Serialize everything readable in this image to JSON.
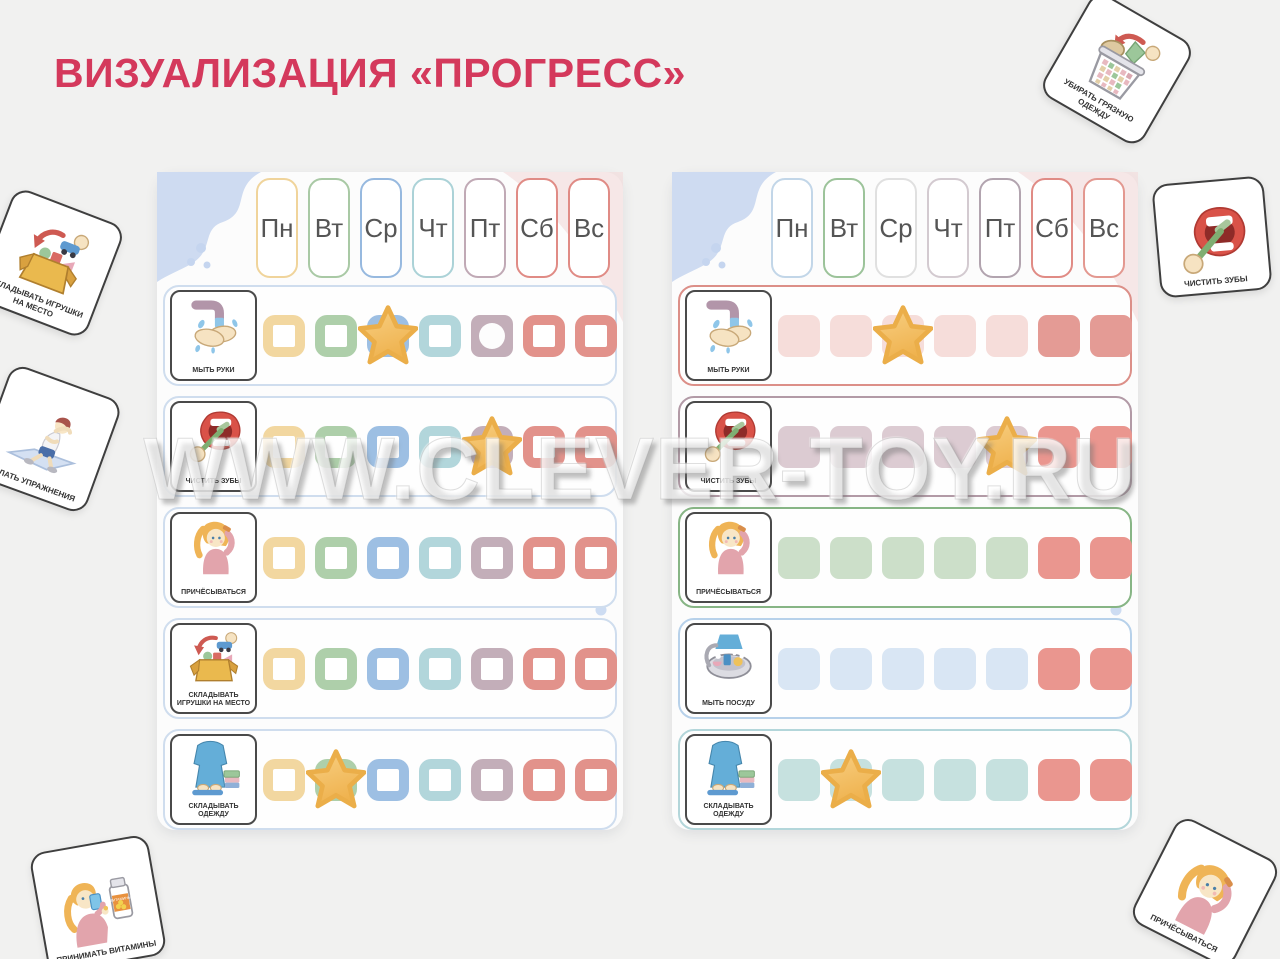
{
  "page": {
    "title": "ВИЗУАЛИЗАЦИЯ «ПРОГРЕСС»",
    "title_color": "#D4395C",
    "background": "#F1F1F0"
  },
  "watermark": "WWW.CLEVER-TOY.RU",
  "vitamins_bottle_label": "ВИТАМИНЫ",
  "palette": {
    "yellow": "#F2D7A0",
    "green": "#AECFAA",
    "blue": "#9DBFE3",
    "teal": "#B2D6DB",
    "mauve": "#C3AEB9",
    "red": "#E2928B",
    "pink": "#F6DDDA",
    "darkpink": "#E49B95",
    "mauvefill": "#DCCBD2",
    "redfill": "#EA968F",
    "greenfill": "#CCDFC9",
    "bluefill": "#D9E6F4",
    "tealfill": "#C6E1DF",
    "star": "#F2BC57"
  },
  "boards": [
    {
      "days": [
        {
          "label": "Пн",
          "color": "#F0D49B"
        },
        {
          "label": "Вт",
          "color": "#A9C9A5"
        },
        {
          "label": "Ср",
          "color": "#97B9DF"
        },
        {
          "label": "Чт",
          "color": "#ABD2D7"
        },
        {
          "label": "Пт",
          "color": "#C0A9B5"
        },
        {
          "label": "Сб",
          "color": "#E08B85"
        },
        {
          "label": "Вс",
          "color": "#E08B85"
        }
      ],
      "rows": [
        {
          "label": "МЫТЬ РУКИ",
          "icon": "#icon-wash-hands",
          "border": "#CFDDEE",
          "cells": [
            "o:yellow",
            "o:green",
            "s:blue",
            "o:teal",
            "c:mauve",
            "o:red",
            "o:red"
          ]
        },
        {
          "label": "ЧИСТИТЬ ЗУБЫ",
          "icon": "#icon-brush-teeth",
          "border": "#CFDDEE",
          "cells": [
            "o:yellow",
            "o:green",
            "o:blue",
            "o:teal",
            "s:mauve",
            "o:red",
            "o:red"
          ]
        },
        {
          "label": "ПРИЧЁСЫВАТЬСЯ",
          "icon": "#icon-comb-hair",
          "border": "#CFDDEE",
          "cells": [
            "o:yellow",
            "o:green",
            "o:blue",
            "o:teal",
            "o:mauve",
            "o:red",
            "o:red"
          ]
        },
        {
          "label": "СКЛАДЫВАТЬ ИГРУШКИ НА МЕСТО",
          "icon": "#icon-put-toys",
          "border": "#CFDDEE",
          "cells": [
            "o:yellow",
            "o:green",
            "o:blue",
            "o:teal",
            "o:mauve",
            "o:red",
            "o:red"
          ]
        },
        {
          "label": "СКЛАДЫВАТЬ ОДЕЖДУ",
          "icon": "#icon-fold-clothes",
          "border": "#CFDDEE",
          "cells": [
            "o:yellow",
            "s:green",
            "o:blue",
            "o:teal",
            "o:mauve",
            "o:red",
            "o:red"
          ]
        }
      ]
    },
    {
      "days": [
        {
          "label": "Пн",
          "color": "#C2D6E8"
        },
        {
          "label": "Вт",
          "color": "#9CC39A"
        },
        {
          "label": "Ср",
          "color": "#E0E0E0"
        },
        {
          "label": "Чт",
          "color": "#D3CAD0"
        },
        {
          "label": "Пт",
          "color": "#B2A4AF"
        },
        {
          "label": "Сб",
          "color": "#E08B85"
        },
        {
          "label": "Вс",
          "color": "#E39890"
        }
      ],
      "rows": [
        {
          "label": "МЫТЬ РУКИ",
          "icon": "#icon-wash-hands",
          "border": "#DC8F88",
          "cells": [
            "f:pink",
            "f:pink",
            "sf:pink",
            "f:pink",
            "f:pink",
            "f:darkpink",
            "f:darkpink"
          ]
        },
        {
          "label": "ЧИСТИТЬ ЗУБЫ",
          "icon": "#icon-brush-teeth",
          "border": "#B29AA6",
          "cells": [
            "f:mauvefill",
            "f:mauvefill",
            "f:mauvefill",
            "f:mauvefill",
            "sf:mauvefill",
            "f:redfill",
            "f:redfill"
          ]
        },
        {
          "label": "ПРИЧЁСЫВАТЬСЯ",
          "icon": "#icon-comb-hair",
          "border": "#87B585",
          "cells": [
            "f:greenfill",
            "f:greenfill",
            "f:greenfill",
            "f:greenfill",
            "f:greenfill",
            "f:redfill",
            "f:redfill"
          ]
        },
        {
          "label": "МЫТЬ ПОСУДУ",
          "icon": "#icon-wash-dishes",
          "border": "#B7D1EA",
          "cells": [
            "f:bluefill",
            "f:bluefill",
            "f:bluefill",
            "f:bluefill",
            "f:bluefill",
            "f:redfill",
            "f:redfill"
          ]
        },
        {
          "label": "СКЛАДЫВАТЬ ОДЕЖДУ",
          "icon": "#icon-fold-clothes",
          "border": "#B3D6DA",
          "cells": [
            "f:tealfill",
            "sf:tealfill",
            "f:tealfill",
            "f:tealfill",
            "f:tealfill",
            "f:redfill",
            "f:redfill"
          ]
        }
      ]
    }
  ],
  "cards": [
    {
      "label": "УБИРАТЬ ГРЯЗНУЮ ОДЕЖДУ",
      "icon": "#icon-laundry"
    },
    {
      "label": "ЧИСТИТЬ ЗУБЫ",
      "icon": "#icon-brush-teeth"
    },
    {
      "label": "СКЛАДЫВАТЬ ИГРУШКИ НА МЕСТО",
      "icon": "#icon-put-toys"
    },
    {
      "label": "ДЕЛАТЬ УПРАЖНЕНИЯ",
      "icon": "#icon-exercises"
    },
    {
      "label": "ПРИНИМАТЬ ВИТАМИНЫ",
      "icon": "#icon-vitamins"
    },
    {
      "label": "ПРИЧЁСЫВАТЬСЯ",
      "icon": "#icon-comb-hair"
    }
  ]
}
